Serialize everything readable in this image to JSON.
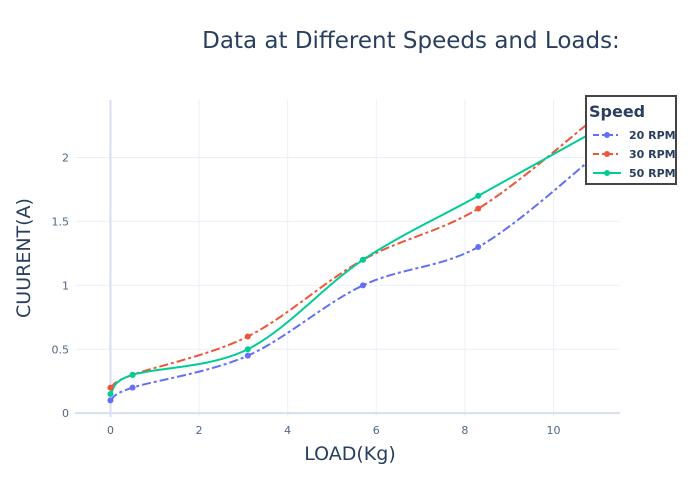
{
  "chart_data": {
    "type": "line",
    "title": "Data at Different Speeds and Loads:",
    "xlabel": "LOAD(Kg)",
    "ylabel": "CUURENT(A)",
    "xlim": [
      -0.8,
      11.5
    ],
    "ylim": [
      -0.03,
      2.45
    ],
    "xticks": [
      0,
      2,
      4,
      6,
      8,
      10
    ],
    "yticks": [
      0,
      0.5,
      1,
      1.5,
      2
    ],
    "xtick_labels": [
      "0",
      "2",
      "4",
      "6",
      "8",
      "10"
    ],
    "ytick_labels": [
      "0",
      "0.5",
      "1",
      "1.5",
      "2"
    ],
    "grid": true,
    "legend": {
      "title": "Speed",
      "placement": "top-right"
    },
    "series": [
      {
        "name": "20 RPM",
        "color": "#636efa",
        "dash": "dashdot",
        "x": [
          0,
          0.5,
          3.1,
          5.7,
          8.3,
          10.9
        ],
        "y": [
          0.1,
          0.2,
          0.45,
          1.0,
          1.3,
          2.0
        ]
      },
      {
        "name": "30 RPM",
        "color": "#ef553b",
        "dash": "dashdot",
        "x": [
          0,
          0.5,
          3.1,
          5.7,
          8.3,
          10.9
        ],
        "y": [
          0.2,
          0.3,
          0.6,
          1.2,
          1.6,
          2.3
        ]
      },
      {
        "name": "50 RPM",
        "color": "#00cc96",
        "dash": "solid",
        "x": [
          0,
          0.5,
          3.1,
          5.7,
          8.3,
          10.9
        ],
        "y": [
          0.15,
          0.3,
          0.5,
          1.2,
          1.7,
          2.2
        ]
      }
    ]
  }
}
